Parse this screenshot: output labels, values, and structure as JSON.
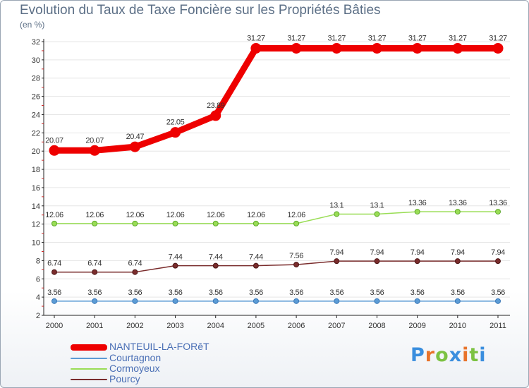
{
  "chart_data": {
    "type": "line",
    "title": "Evolution du Taux de Taxe Foncière sur les Propriétés Bâties",
    "unit_label": "(en %)",
    "categories": [
      "2000",
      "2001",
      "2002",
      "2003",
      "2004",
      "2005",
      "2006",
      "2007",
      "2008",
      "2009",
      "2010",
      "2011"
    ],
    "ylim": [
      2,
      32
    ],
    "yticks": [
      2,
      4,
      6,
      8,
      10,
      12,
      14,
      16,
      18,
      20,
      22,
      24,
      26,
      28,
      30,
      32
    ],
    "series": [
      {
        "name": "NANTEUIL-LA-FORêT",
        "color": "#ee0000",
        "values": [
          20.07,
          20.07,
          20.47,
          22.05,
          23.89,
          31.27,
          31.27,
          31.27,
          31.27,
          31.27,
          31.27,
          31.27
        ],
        "labels": [
          "20.07",
          "20.07",
          "20.47",
          "22.05",
          "23.89",
          "31.27",
          "31.27",
          "31.27",
          "31.27",
          "31.27",
          "31.27",
          "31.27"
        ]
      },
      {
        "name": "Courtagnon",
        "color": "#5b9bd5",
        "values": [
          3.56,
          3.56,
          3.56,
          3.56,
          3.56,
          3.56,
          3.56,
          3.56,
          3.56,
          3.56,
          3.56,
          3.56
        ],
        "labels": [
          "3.56",
          "3.56",
          "3.56",
          "3.56",
          "3.56",
          "3.56",
          "3.56",
          "3.56",
          "3.56",
          "3.56",
          "3.56",
          "3.56"
        ]
      },
      {
        "name": "Cormoyeux",
        "color": "#99dd55",
        "values": [
          12.06,
          12.06,
          12.06,
          12.06,
          12.06,
          12.06,
          12.06,
          13.1,
          13.1,
          13.36,
          13.36,
          13.36
        ],
        "labels": [
          "12.06",
          "12.06",
          "12.06",
          "12.06",
          "12.06",
          "12.06",
          "12.06",
          "13.1",
          "13.1",
          "13.36",
          "13.36",
          "13.36"
        ]
      },
      {
        "name": "Pourcy",
        "color": "#7a2c2c",
        "values": [
          6.74,
          6.74,
          6.74,
          7.44,
          7.44,
          7.44,
          7.56,
          7.94,
          7.94,
          7.94,
          7.94,
          7.94
        ],
        "labels": [
          "6.74",
          "6.74",
          "6.74",
          "7.44",
          "7.44",
          "7.44",
          "7.56",
          "7.94",
          "7.94",
          "7.94",
          "7.94",
          "7.94"
        ]
      }
    ]
  },
  "logo": {
    "text": "Proxiti",
    "colors": [
      "#3a8ede",
      "#e8732a",
      "#7cc242",
      "#3a8ede",
      "#e8732a",
      "#7cc242",
      "#3a8ede"
    ]
  }
}
